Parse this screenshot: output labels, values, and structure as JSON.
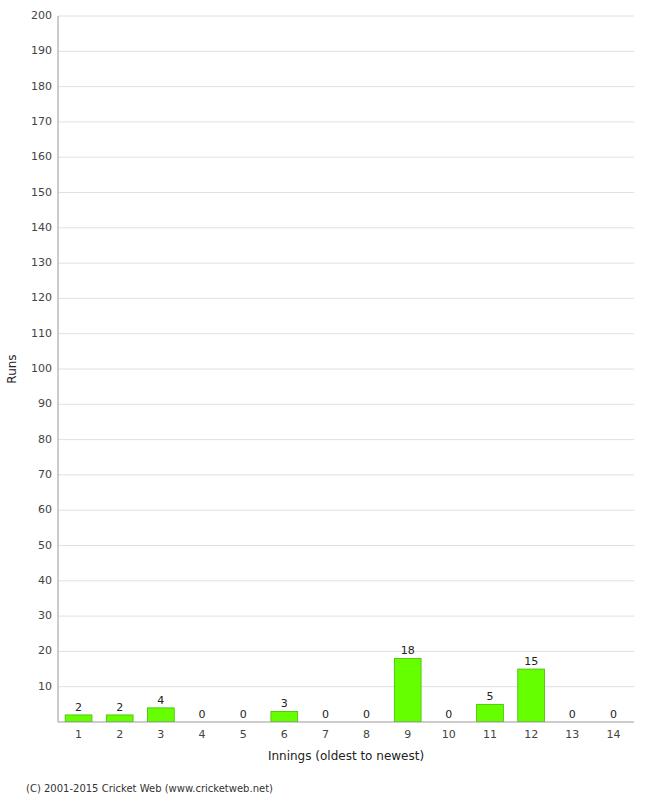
{
  "chart_data": {
    "type": "bar",
    "categories": [
      "1",
      "2",
      "3",
      "4",
      "5",
      "6",
      "7",
      "8",
      "9",
      "10",
      "11",
      "12",
      "13",
      "14"
    ],
    "values": [
      2,
      2,
      4,
      0,
      0,
      3,
      0,
      0,
      18,
      0,
      5,
      15,
      0,
      0
    ],
    "color": "#66ff00",
    "xlabel": "Innings (oldest to newest)",
    "ylabel": "Runs",
    "ylim": [
      0,
      200
    ],
    "yticks": [
      10,
      20,
      30,
      40,
      50,
      60,
      70,
      80,
      90,
      100,
      110,
      120,
      130,
      140,
      150,
      160,
      170,
      180,
      190,
      200
    ],
    "grid": true,
    "data_labels": true,
    "annotations": [
      "(C) 2001-2015 Cricket Web (www.cricketweb.net)"
    ]
  }
}
